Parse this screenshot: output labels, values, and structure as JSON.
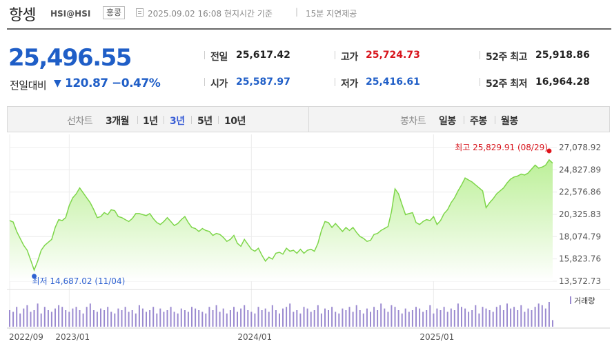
{
  "header": {
    "title": "항셍",
    "code": "HSI@HSI",
    "market": "홍콩",
    "datetime": "2025.09.02 16:08 현지시간 기준",
    "separator": "|",
    "delay": "15분 지연제공"
  },
  "quote": {
    "price": "25,496.55",
    "change_label": "전일대비",
    "change_arrow": "▼",
    "change_value": "120.87",
    "change_pct": "−0.47%",
    "prev_close_label": "전일",
    "prev_close": "25,617.42",
    "open_label": "시가",
    "open": "25,587.97",
    "high_label": "고가",
    "high": "25,724.73",
    "low_label": "저가",
    "low": "25,416.61",
    "wk52_high_label": "52주 최고",
    "wk52_high": "25,918.86",
    "wk52_low_label": "52주 최저",
    "wk52_low": "16,964.28"
  },
  "tabs": {
    "line_label": "선차트",
    "periods": [
      "3개월",
      "1년",
      "3년",
      "5년",
      "10년"
    ],
    "active_period": "3년",
    "candle_label": "봉차트",
    "candles": [
      "일봉",
      "주봉",
      "월봉"
    ]
  },
  "colors": {
    "price_blue": "#1f5ec7",
    "up_red": "#d8141c",
    "line_green": "#7ed64a",
    "volume_purple": "#9b8ad0"
  },
  "chart_data": {
    "type": "area",
    "ylim": [
      13572.73,
      27078.92
    ],
    "y_ticks": [
      "27,078.92",
      "24,827.89",
      "22,576.86",
      "20,325.83",
      "18,074.79",
      "15,823.76",
      "13,572.73"
    ],
    "x_ticks": [
      "2022/09",
      "2023/01",
      "2024/01",
      "2025/01"
    ],
    "x_tick_weeks": [
      0,
      17,
      69,
      121
    ],
    "max_label": "최고 25,829.91 (08/29)",
    "min_label": "최저 14,687.02 (11/04)",
    "volume_label": "거래량",
    "values": [
      19700,
      19550,
      18600,
      17900,
      17200,
      16700,
      15700,
      14700,
      15600,
      16700,
      17200,
      17500,
      17800,
      19000,
      19800,
      19700,
      20000,
      21200,
      22000,
      22400,
      23000,
      22500,
      22000,
      21500,
      20800,
      20000,
      20100,
      20500,
      20300,
      20800,
      20700,
      20100,
      20000,
      19800,
      19600,
      19900,
      20400,
      20400,
      20300,
      20200,
      20400,
      19900,
      19500,
      19300,
      19600,
      20000,
      19600,
      19200,
      19400,
      19800,
      20100,
      19500,
      19000,
      18900,
      18600,
      18900,
      18700,
      18600,
      18200,
      18400,
      18300,
      18000,
      17600,
      17800,
      18200,
      17400,
      17100,
      17800,
      17300,
      16800,
      16600,
      16900,
      16200,
      15600,
      16000,
      15800,
      16400,
      16500,
      16300,
      16900,
      16600,
      16700,
      16400,
      16800,
      16400,
      16700,
      16800,
      16600,
      17400,
      18700,
      19600,
      19500,
      19000,
      19400,
      19000,
      18600,
      19000,
      18700,
      19000,
      18500,
      18100,
      17900,
      17600,
      17700,
      18300,
      18400,
      18700,
      18900,
      19100,
      20600,
      22900,
      22400,
      21300,
      20300,
      20400,
      20500,
      19500,
      19300,
      19600,
      19800,
      19700,
      20100,
      19300,
      19700,
      20400,
      20800,
      21500,
      22000,
      22700,
      23300,
      24000,
      23800,
      23600,
      23300,
      23000,
      22700,
      21000,
      21500,
      21900,
      22400,
      22700,
      23000,
      23500,
      23900,
      24100,
      24200,
      24400,
      24300,
      24500,
      24900,
      25300,
      25000,
      25100,
      25300,
      25830,
      25500
    ],
    "volumes": [
      10,
      9,
      12,
      8,
      11,
      13,
      9,
      10,
      14,
      8,
      12,
      10,
      9,
      11,
      13,
      12,
      10,
      9,
      11,
      12,
      10,
      8,
      12,
      14,
      10,
      9,
      11,
      10,
      12,
      9,
      8,
      11,
      10,
      12,
      9,
      10,
      8,
      13,
      11,
      9,
      10,
      12,
      8,
      11,
      9,
      10,
      12,
      9,
      8,
      11,
      10,
      9,
      12,
      11,
      10,
      9,
      8,
      12,
      10,
      13,
      9,
      11,
      8,
      10,
      12,
      9,
      11,
      13,
      10,
      9,
      8,
      12,
      10,
      11,
      9,
      13,
      10,
      8,
      11,
      12,
      14,
      9,
      10,
      8,
      12,
      11,
      9,
      10,
      13,
      8,
      11,
      10,
      12,
      9,
      8,
      11,
      10,
      12,
      9,
      13,
      10,
      8,
      11,
      9,
      12,
      10,
      14,
      11,
      9,
      13,
      12,
      10,
      8,
      11,
      9,
      10,
      12,
      11,
      9,
      10,
      13,
      8,
      11,
      10,
      12,
      9,
      11,
      10,
      14,
      12,
      11,
      9,
      10,
      13,
      8,
      12,
      11,
      10,
      9,
      12,
      13,
      10,
      14,
      11,
      12,
      10,
      13,
      9,
      11,
      10,
      12,
      14,
      13,
      11,
      15,
      4
    ]
  }
}
